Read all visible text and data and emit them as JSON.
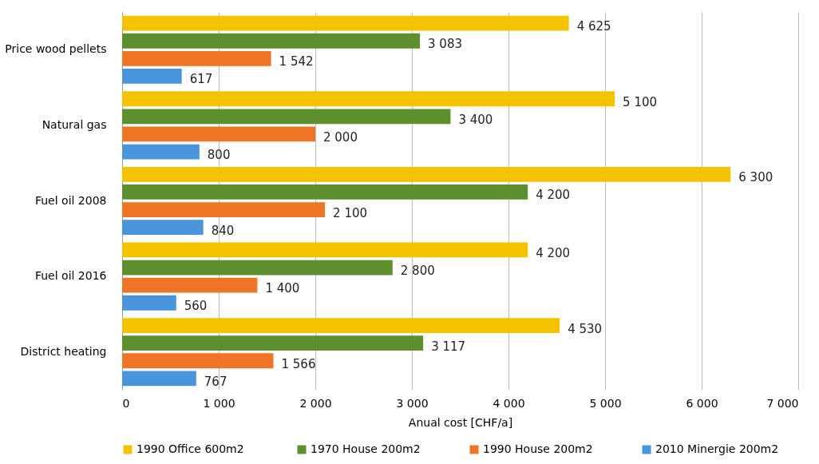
{
  "chart_data": {
    "type": "bar",
    "orientation": "horizontal",
    "xlabel": "Anual cost [CHF/a]",
    "categories": [
      "Price wood pellets",
      "Natural gas",
      "Fuel oil 2008",
      "Fuel oil 2016",
      "District heating"
    ],
    "series": [
      {
        "name": "1990 Office  600m2",
        "color": "#f5c200",
        "values": [
          4625,
          5100,
          6300,
          4200,
          4530
        ],
        "value_labels": [
          "4 625",
          "5 100",
          "6 300",
          "4 200",
          "4 530"
        ]
      },
      {
        "name": "1970 House 200m2",
        "color": "#5e8f2f",
        "values": [
          3083,
          3400,
          4200,
          2800,
          3117
        ],
        "value_labels": [
          "3 083",
          "3 400",
          "4 200",
          "2 800",
          "3 117"
        ]
      },
      {
        "name": "1990 House 200m2",
        "color": "#ef7526",
        "values": [
          1542,
          2000,
          2100,
          1400,
          1566
        ],
        "value_labels": [
          "1 542",
          "2 000",
          "2 100",
          "1 400",
          "1 566"
        ]
      },
      {
        "name": "2010 Minergie 200m2",
        "color": "#4a94dc",
        "values": [
          617,
          800,
          840,
          560,
          767
        ],
        "value_labels": [
          "617",
          "800",
          "840",
          "560",
          "767"
        ]
      }
    ],
    "xlim": [
      0,
      7000
    ],
    "xticks": [
      0,
      {
        "value": 1000,
        "label": "1 000"
      },
      {
        "value": 2000,
        "label": "2 000"
      },
      {
        "value": 3000,
        "label": "3 000"
      },
      {
        "value": 4000,
        "label": "4 000"
      },
      {
        "value": 5000,
        "label": "5 000"
      },
      {
        "value": 6000,
        "label": "6 000"
      },
      {
        "value": 7000,
        "label": "7 000"
      }
    ],
    "grid": "x",
    "legend": "bottom"
  }
}
